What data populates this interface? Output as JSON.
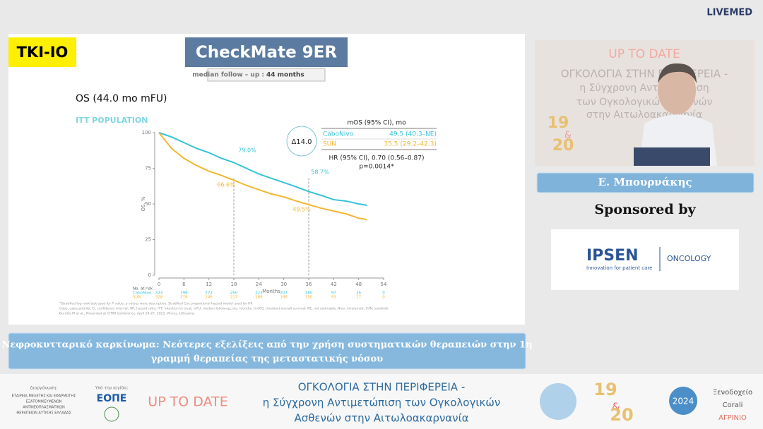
{
  "header": {
    "brand": "LIVEMED"
  },
  "slide": {
    "tag": "TKI-IO",
    "title": "CheckMate 9ER",
    "follow_up_label": "median follow – up :",
    "follow_up_value": "44 months",
    "chart": {
      "type": "line",
      "title": "OS (44.0 mo mFU)",
      "population": "ITT POPULATION",
      "xlabel": "Months",
      "ylabel": "OS, %",
      "xlim": [
        0,
        54
      ],
      "ylim": [
        0,
        100
      ],
      "xticks": [
        0,
        6,
        12,
        18,
        24,
        30,
        36,
        42,
        48,
        54
      ],
      "yticks": [
        0,
        25,
        50,
        75,
        100
      ],
      "x": [
        0,
        3,
        6,
        9,
        12,
        15,
        18,
        21,
        24,
        27,
        30,
        33,
        36,
        39,
        42,
        45,
        48,
        50
      ],
      "series": [
        {
          "name": "CaboNivo",
          "color": "#35c3d6",
          "values": [
            100,
            97,
            93,
            89,
            86,
            82,
            79,
            75,
            71,
            68,
            65,
            62,
            58.7,
            56,
            53,
            52,
            50,
            49
          ]
        },
        {
          "name": "SUN",
          "color": "#f2b631",
          "values": [
            100,
            89,
            82,
            77,
            73,
            70,
            66.6,
            63,
            60,
            57,
            55,
            52,
            49.5,
            47,
            45,
            43,
            40,
            39
          ]
        }
      ],
      "annotations": [
        "79.0%",
        "58.7%",
        "66.6%",
        "49.5%"
      ],
      "delta": "Δ14.0",
      "stats": {
        "header": "mOS (95% CI), mo",
        "cabo_value": "49.5 (40.3–NE)",
        "sun_value": "35.5 (29.2–42.3)",
        "hr": "HR (95% CI), 0.70 (0.56–0.87)",
        "p": "p=0.0014*"
      },
      "risk": {
        "label": "No. at risk",
        "rows": [
          [
            323,
            298,
            272,
            250,
            223,
            207,
            180,
            97,
            25,
            0
          ],
          [
            328,
            278,
            246,
            217,
            189,
            166,
            150,
            93,
            17,
            0
          ]
        ]
      }
    },
    "footnotes": [
      "*Stratified log-rank test used for P value; p values were descriptive. Stratified Cox proportional hazard model used for HR",
      "Cabo, cabozantinib; CI, confidence interval; HR, hazard ratio; ITT, intention to treat; mFU, median follow-up; mo, months; (m)OS, (median) overall survival; NE, not estimable; Nivo, nivolumab; SUN, sunitinib.",
      "Burotto M et al., Presented at CITIM Conference, April 24-27, 2023, Vilnius, Lithuania."
    ]
  },
  "video": {
    "lines": [
      "UP TO DATE",
      "ΟΓΚΟΛΟΓΙΑ ΣΤΗΝ ΠΕΡΙΦΕΡΕΙΑ -",
      "η Σύγχρονη Αντιμετώπιση",
      "των Ογκολογικών Ασθενών",
      "στην Αιτωλοακαρνανία"
    ],
    "dates": [
      "19",
      "&",
      "20"
    ]
  },
  "speaker": "Ε. Μπουρνάκης",
  "sponsor": {
    "label": "Sponsored by",
    "name": "IPSEN",
    "tagline": "Innovation for patient care",
    "division": "ONCOLOGY"
  },
  "talk_title": [
    "Νεφροκυτταρικό καρκίνωμα: Νεότερες εξελίξεις από την χρήση συστηματικών θεραπειών στην 1η",
    "γραμμή θεραπείας της μεταστατικής νόσου"
  ],
  "footer": {
    "organizer_label": "Διοργάνωση:",
    "organizer": [
      "ΕΤΑΙΡΕΙΑ ΜΕΛΕΤΗΣ ΚΑΙ ΕΦΑΡΜΟΓΗΣ",
      "ΕΞΑΤΟΜΙΚΕΥΜΕΝΩΝ",
      "ΑΝΤΙΝΕΟΠΛΑΣΜΑΤΙΚΩΝ",
      "ΘΕΡΑΠΕΙΩΝ ΔΥΤΙΚΗΣ ΕΛΛΑΔΑΣ"
    ],
    "auspices_label": "Υπό την αιγίδα:",
    "auspices": "ΕΟΠΕ",
    "event": "UP TO DATE",
    "title": [
      "ΟΓΚΟΛΟΓΙΑ ΣΤΗΝ ΠΕΡΙΦΕΡΕΙΑ -",
      "η Σύγχρονη Αντιμετώπιση των Ογκολογικών",
      "Ασθενών στην Αιτωλοακαρνανία"
    ],
    "dates": [
      "19",
      "&",
      "20"
    ],
    "year": "2024",
    "venue": [
      "Ξενοδοχείο",
      "Corali",
      "ΑΓΡΙΝΙΟ"
    ]
  }
}
